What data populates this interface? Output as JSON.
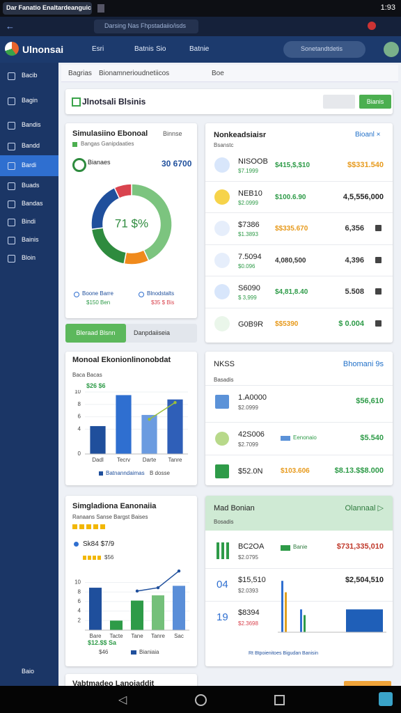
{
  "status_bar": {
    "tab_title": "Dar Fanatio Enaltardeanguic",
    "time": "1:93"
  },
  "browser": {
    "url": "Darsing Nas Fhpstadaiio/isds"
  },
  "header": {
    "logo": "Ulnonsai",
    "nav": [
      "Esri",
      "Batnis",
      "Sio",
      "Batnie"
    ],
    "search": "Sonetandtdetis"
  },
  "sidebar": {
    "items": [
      "Bacib",
      "Bagin",
      "Bandis",
      "Bandd",
      "Bardi",
      "Buads",
      "Bandas",
      "Bindi",
      "Bainis",
      "Bloin"
    ],
    "footer": "Baio"
  },
  "breadcrumb": [
    "Bagrias",
    "Bionamnerioudnetiicos",
    "Boe"
  ],
  "page": {
    "title": "Jlnotsali Blsinis",
    "button": "Bianis"
  },
  "donut_card": {
    "title": "Simulasiino Ebonoal",
    "action": "Binnse",
    "subtitle": "Bangas Ganipdaaties",
    "legend_label": "Bianaes",
    "total": "30 6700",
    "center_label": "71 $%",
    "chart": {
      "type": "donut",
      "values": [
        43,
        10,
        20,
        20,
        7
      ],
      "colors": [
        "#7cc47f",
        "#f08a1c",
        "#2e8b3e",
        "#1f4f9c",
        "#d9434e"
      ]
    },
    "legend": [
      {
        "label": "Boone Barre",
        "value": "$150 Ben"
      },
      {
        "label": "Blnodstalts",
        "value": "$35 $ Bis"
      }
    ]
  },
  "list_card": {
    "title": "Nonkeadsiaisr",
    "subtitle": "Bsanstc",
    "action": "Bioanl ×",
    "rows": [
      {
        "name": "NISOOB",
        "sub": "$7.1999",
        "value": "$415,$,$10",
        "total": "$$331.540"
      },
      {
        "name": "NEB10",
        "sub": "$2.0999",
        "value": "$100.6.90",
        "total": "4,5,556,000"
      },
      {
        "name": "$7386",
        "sub": "$1.3893",
        "value": "$$335.670",
        "total": "6,356"
      },
      {
        "name": "7.5094",
        "sub": "$0.096",
        "value": "4,080,500",
        "total": "4,396"
      },
      {
        "name": "S6090",
        "sub": "$ 3,999",
        "value": "$4,81,8.40",
        "total": "5.508"
      },
      {
        "name": "G0B9R",
        "value": "$$5390",
        "total": "$ 0.004"
      }
    ]
  },
  "select_bar": {
    "button": "Bleraad Blsnn",
    "select": "Danpdaiiseia"
  },
  "bar_card": {
    "title": "Monoal Ekonionlinonobdat",
    "subtitle": "Baca Bacas",
    "value": "$26 $6",
    "chart": {
      "type": "bar",
      "categories": [
        "Dadl",
        "Tecrv",
        "Darte",
        "Tanre"
      ],
      "values": [
        4.5,
        9.5,
        6.3,
        8.8
      ],
      "colors": [
        "#1f4f9c",
        "#2f6fd0",
        "#6b9be0",
        "#2f5fb8"
      ],
      "line": [
        null,
        null,
        5.6,
        8.3
      ],
      "line_color": "#9bbf3a",
      "ylim": [
        0,
        10
      ],
      "yticks": [
        0,
        4,
        6,
        8,
        10
      ]
    },
    "legend": [
      "Batnanndaimas",
      "B dosse"
    ]
  },
  "stat_card": {
    "title": "NKSS",
    "action": "Bhomani 9s",
    "subtitle": "Basadis",
    "rows": [
      {
        "name": "1.A0000",
        "sub": "$2.0999",
        "total": "$56,610"
      },
      {
        "name": "42S006",
        "sub": "$2.7099",
        "tag": "Eenonaio",
        "total": "$5.540"
      },
      {
        "name": "$52.0N",
        "value": "$103.606",
        "total": "$8.13.$$8.000"
      }
    ]
  },
  "rating_card": {
    "title": "Simgladiona Eanonaiia",
    "subtitle": "Ranaans Sanse Bargst Baises",
    "stat": "Sk84 $7/9",
    "stat_sub": "$56",
    "chart": {
      "type": "bar",
      "categories": [
        "Bare",
        "Tacte",
        "Tane",
        "Tanre",
        "Sac"
      ],
      "values": [
        8.9,
        2,
        6.2,
        7.3,
        9.3
      ],
      "colors": [
        "#1f4f9c",
        "#2e9b48",
        "#2e9b48",
        "#74c07a",
        "#5a8ed8"
      ],
      "line": [
        null,
        null,
        8.2,
        8.9,
        12.4
      ],
      "line_color": "#1f4f9c",
      "ylim": [
        0,
        13
      ],
      "yticks": [
        2,
        4,
        6,
        8,
        10
      ]
    },
    "legend": {
      "value": "$12.$$ Sa",
      "sub": "$46",
      "label": "Bianiaia"
    }
  },
  "green_card": {
    "title": "Mad Bonian",
    "action": "Olannaal ▷",
    "subtitle": "Bosadis",
    "rows": [
      {
        "name": "BC2OA",
        "sub": "$2.0795",
        "tag": "Banie",
        "total": "$731,335,010"
      },
      {
        "icon": "04",
        "name": "$15,510",
        "sub": "$2.0393",
        "total": "$2,504,510"
      },
      {
        "icon": "19",
        "name": "$8394",
        "sub": "$2.3698"
      }
    ],
    "chart": {
      "type": "bar",
      "values": [
        9,
        7,
        4,
        3,
        4
      ],
      "colors": [
        "#2f6fd0",
        "#e0a020",
        "#2f6fd0",
        "#2e9b48",
        "#1f5fb8"
      ],
      "ylim": [
        0,
        10
      ]
    },
    "footer": "Rt Btpoienitoes Bigudan Banisin"
  },
  "bottom_card": {
    "title": "Vabtmadeo Lanoiaddit"
  }
}
